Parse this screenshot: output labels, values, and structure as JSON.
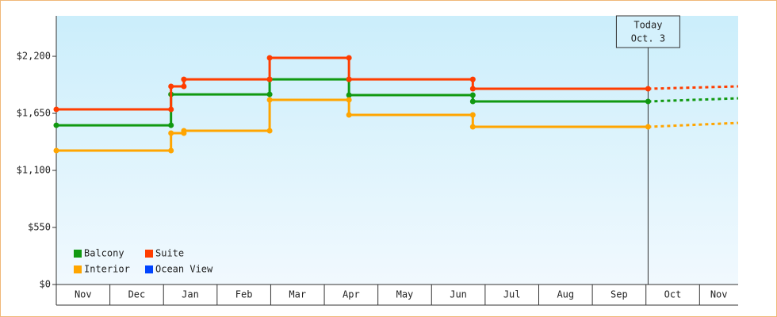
{
  "chart_data": {
    "type": "step-line",
    "categories": [
      "Nov",
      "Dec",
      "Jan",
      "Feb",
      "Mar",
      "Apr",
      "May",
      "Jun",
      "Jul",
      "Aug",
      "Sep",
      "Oct",
      "Nov"
    ],
    "xlim": [
      0,
      12.72
    ],
    "ylim": [
      0,
      2590
    ],
    "yticks": [
      {
        "value": 0,
        "label": "$0"
      },
      {
        "value": 550,
        "label": "$550"
      },
      {
        "value": 1100,
        "label": "$1,100"
      },
      {
        "value": 1650,
        "label": "$1,650"
      },
      {
        "value": 2200,
        "label": "$2,200"
      }
    ],
    "grid": false,
    "legend": "bottom-left",
    "today": {
      "x": 11.04,
      "label": [
        "Today",
        "Oct. 3"
      ]
    },
    "projected_x": [
      11.04,
      12.72
    ],
    "series": [
      {
        "name": "Balcony",
        "color": "#119911",
        "x": [
          0,
          2.14,
          2.14,
          3.98,
          3.98,
          5.46,
          5.46,
          7.77,
          7.77,
          11.04
        ],
        "values": [
          1535,
          1535,
          1833,
          1833,
          1978,
          1978,
          1826,
          1826,
          1765,
          1765
        ],
        "projected_values": [
          1765,
          1795
        ]
      },
      {
        "name": "Suite",
        "color": "#ff3d00",
        "x": [
          0,
          2.14,
          2.14,
          2.38,
          2.38,
          3.98,
          3.98,
          5.46,
          5.46,
          7.77,
          7.77,
          11.04
        ],
        "values": [
          1688,
          1688,
          1910,
          1910,
          1978,
          1978,
          2185,
          2185,
          1978,
          1978,
          1887,
          1887
        ],
        "projected_values": [
          1887,
          1910
        ]
      },
      {
        "name": "Interior",
        "color": "#ffa500",
        "x": [
          0,
          2.14,
          2.14,
          2.38,
          2.38,
          3.98,
          3.98,
          5.46,
          5.46,
          7.77,
          7.77,
          11.04
        ],
        "values": [
          1291,
          1291,
          1459,
          1459,
          1482,
          1482,
          1780,
          1780,
          1635,
          1635,
          1520,
          1520
        ],
        "projected_values": [
          1520,
          1558
        ]
      },
      {
        "name": "Ocean View",
        "color": "#0044ff",
        "x": [],
        "values": [],
        "projected_values": []
      }
    ]
  }
}
